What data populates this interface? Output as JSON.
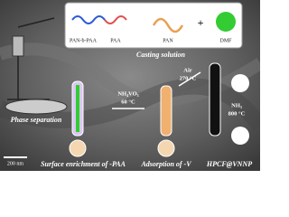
{
  "casting": {
    "labels": [
      "PAN-b-PAA",
      "PAA",
      "PAN",
      "DMF"
    ],
    "plus": "+",
    "title": "Casting solution"
  },
  "steps": {
    "phase_separation": "Phase separation",
    "vanadium": [
      "NH₄VO₃",
      "60 °C"
    ],
    "air": [
      "Air",
      "270 °C"
    ],
    "ammonia": [
      "NH₃",
      "800 °C"
    ]
  },
  "captions": [
    "Surface enrichment of -PAA",
    "Adsorption of -V",
    "HPCF@VNNP"
  ],
  "scale_bar": "200 nm"
}
